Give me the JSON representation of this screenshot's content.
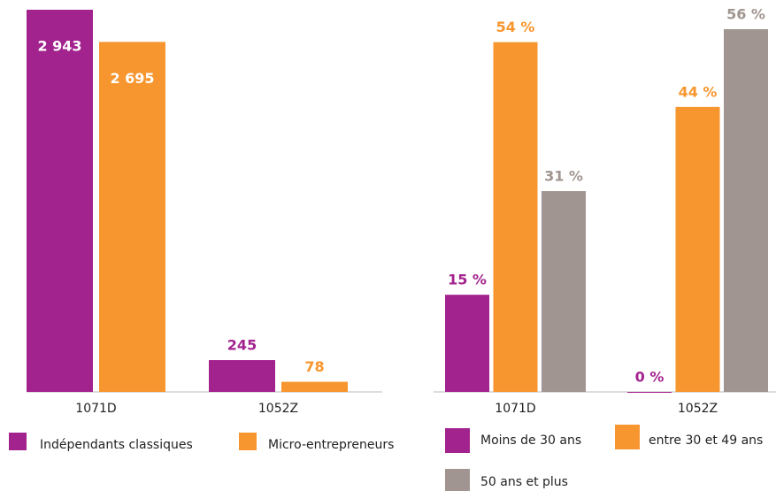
{
  "chart_data": [
    {
      "type": "bar",
      "categories": [
        "1071D",
        "1052Z"
      ],
      "series": [
        {
          "name": "Indépendants classiques",
          "color": "#a3238e",
          "values": [
            2943,
            245
          ],
          "value_labels": [
            "2 943",
            "245"
          ]
        },
        {
          "name": "Micro-entrepreneurs",
          "color": "#f7962e",
          "values": [
            2695,
            78
          ],
          "value_labels": [
            "2 695",
            "78"
          ]
        }
      ]
    },
    {
      "type": "bar",
      "categories": [
        "1071D",
        "1052Z"
      ],
      "series": [
        {
          "name": "Moins de 30 ans",
          "color": "#a3238e",
          "values": [
            15,
            0
          ],
          "value_labels": [
            "15 %",
            "0 %"
          ]
        },
        {
          "name": "entre 30 et 49 ans",
          "color": "#f7962e",
          "values": [
            54,
            44
          ],
          "value_labels": [
            "54 %",
            "44 %"
          ]
        },
        {
          "name": "50 ans et plus",
          "color": "#a09590",
          "values": [
            31,
            56
          ],
          "value_labels": [
            "31 %",
            "56 %"
          ]
        }
      ]
    }
  ]
}
